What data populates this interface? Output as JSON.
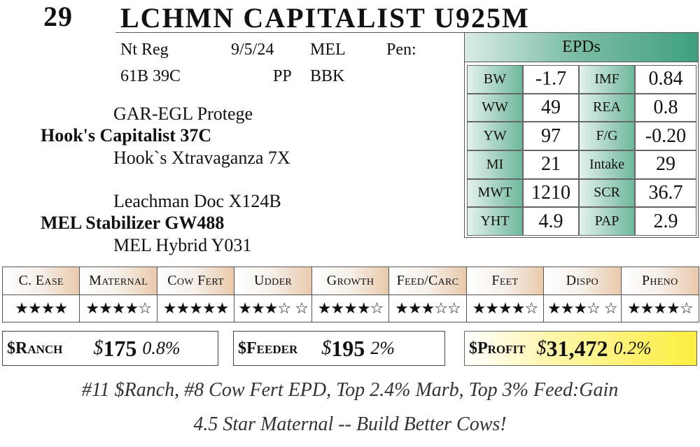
{
  "header": {
    "lot_number": "29",
    "animal_name": "LCHMN CAPITALIST U925M"
  },
  "info": {
    "row1": {
      "reg": "Nt Reg",
      "date": "9/5/24",
      "breeder": "MEL",
      "pen": "Pen:"
    },
    "row2": {
      "ids": "61B 39C",
      "pp": "PP",
      "color": "BBK"
    }
  },
  "pedigree": {
    "sire_sire": "GAR-EGL Protege",
    "sire": "Hook's Capitalist 37C",
    "sire_dam": "Hook`s Xtravaganza 7X",
    "dam_sire": "Leachman Doc X124B",
    "dam": "MEL Stabilizer GW488",
    "dam_dam": "MEL Hybrid Y031"
  },
  "epds": {
    "title": "EPDs",
    "rows": [
      {
        "l1": "BW",
        "v1": "-1.7",
        "l2": "IMF",
        "v2": "0.84"
      },
      {
        "l1": "WW",
        "v1": "49",
        "l2": "REA",
        "v2": "0.8"
      },
      {
        "l1": "YW",
        "v1": "97",
        "l2": "F/G",
        "v2": "-0.20"
      },
      {
        "l1": "MI",
        "v1": "21",
        "l2": "Intake",
        "v2": "29"
      },
      {
        "l1": "MWT",
        "v1": "1210",
        "l2": "SCR",
        "v2": "36.7"
      },
      {
        "l1": "YHT",
        "v1": "4.9",
        "l2": "PAP",
        "v2": "2.9"
      }
    ]
  },
  "ratings": [
    {
      "label": "C. Ease",
      "stars": "★★★★"
    },
    {
      "label": "Maternal",
      "stars": "★★★★☆"
    },
    {
      "label": "Cow Fert",
      "stars": "★★★★★"
    },
    {
      "label": "Udder",
      "stars": "★★★☆ ☆"
    },
    {
      "label": "Growth",
      "stars": "★★★★☆"
    },
    {
      "label": "Feed/Carc",
      "stars": "★★★☆☆"
    },
    {
      "label": "Feet",
      "stars": "★★★★☆"
    },
    {
      "label": "Dispo",
      "stars": "★★★☆ ☆"
    },
    {
      "label": "Pheno",
      "stars": "★★★★☆"
    }
  ],
  "indexes": {
    "ranch": {
      "label": "$Ranch",
      "dollar": "$",
      "value": "175",
      "pct": "0.8%"
    },
    "feeder": {
      "label": "$Feeder",
      "dollar": "$",
      "value": "195",
      "pct": "2%"
    },
    "profit": {
      "label": "$Profit",
      "dollar": "$",
      "value": "31,472",
      "pct": "0.2%"
    }
  },
  "footer": {
    "line1": "#11 $Ranch, #8 Cow Fert EPD, Top 2.4% Marb, Top 3% Feed:Gain",
    "line2": "4.5 Star Maternal -- Build Better Cows!"
  },
  "colors": {
    "epd_accent": "#3f9f80",
    "rating_accent": "#e9c9ab",
    "profit_accent": "#fbee3f"
  }
}
